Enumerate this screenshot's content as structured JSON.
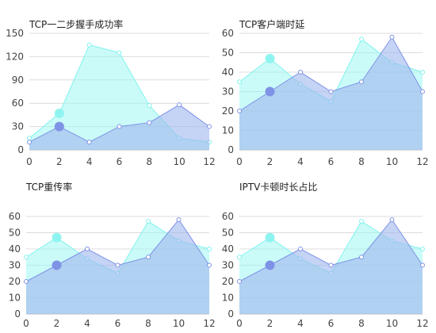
{
  "colors": {
    "series_a_line": "#7ff3ee",
    "series_a_fill": "#9ff7f2",
    "series_b_line": "#7f93e6",
    "series_b_fill": "#9fb6ee",
    "grid": "#dcdcdc"
  },
  "chart_data": [
    {
      "type": "area",
      "title": "TCP一二步握手成功率",
      "x": [
        0,
        2,
        4,
        6,
        8,
        10,
        12
      ],
      "xlim": [
        0,
        12
      ],
      "ylim": [
        0,
        150
      ],
      "yticks": [
        0,
        30,
        60,
        90,
        120,
        150
      ],
      "xticks": [
        0,
        2,
        4,
        6,
        8,
        10,
        12
      ],
      "grid": true,
      "series": [
        {
          "values": [
            15,
            47,
            135,
            125,
            57,
            15,
            10
          ],
          "highlight_x": 2
        },
        {
          "values": [
            10,
            30,
            10,
            30,
            35,
            58,
            30
          ],
          "highlight_x": 2
        }
      ]
    },
    {
      "type": "area",
      "title": "TCP客户端时延",
      "x": [
        0,
        2,
        4,
        6,
        8,
        10,
        12
      ],
      "xlim": [
        0,
        12
      ],
      "ylim": [
        0,
        60
      ],
      "yticks": [
        0,
        10,
        20,
        30,
        40,
        50,
        60
      ],
      "xticks": [
        0,
        2,
        4,
        6,
        8,
        10,
        12
      ],
      "grid": true,
      "series": [
        {
          "values": [
            35,
            47,
            34,
            25,
            57,
            45,
            40
          ],
          "highlight_x": 2
        },
        {
          "values": [
            20,
            30,
            40,
            30,
            35,
            58,
            30
          ],
          "highlight_x": 2
        }
      ]
    },
    {
      "type": "area",
      "title": "TCP重传率",
      "x": [
        0,
        2,
        4,
        6,
        8,
        10,
        12
      ],
      "xlim": [
        0,
        12
      ],
      "ylim": [
        0,
        60
      ],
      "yticks": [
        0,
        10,
        20,
        30,
        40,
        50,
        60
      ],
      "xticks": [
        0,
        2,
        4,
        6,
        8,
        10,
        12
      ],
      "grid": true,
      "series": [
        {
          "values": [
            35,
            47,
            34,
            25,
            57,
            45,
            40
          ],
          "highlight_x": 2
        },
        {
          "values": [
            20,
            30,
            40,
            30,
            35,
            58,
            30
          ],
          "highlight_x": 2
        }
      ]
    },
    {
      "type": "area",
      "title": "IPTV卡顿时长占比",
      "x": [
        0,
        2,
        4,
        6,
        8,
        10,
        12
      ],
      "xlim": [
        0,
        12
      ],
      "ylim": [
        0,
        60
      ],
      "yticks": [
        0,
        10,
        20,
        30,
        40,
        50,
        60
      ],
      "xticks": [
        0,
        2,
        4,
        6,
        8,
        10,
        12
      ],
      "grid": true,
      "series": [
        {
          "values": [
            35,
            47,
            34,
            25,
            57,
            45,
            40
          ],
          "highlight_x": 2
        },
        {
          "values": [
            20,
            30,
            40,
            30,
            35,
            58,
            30
          ],
          "highlight_x": 2
        }
      ]
    }
  ]
}
